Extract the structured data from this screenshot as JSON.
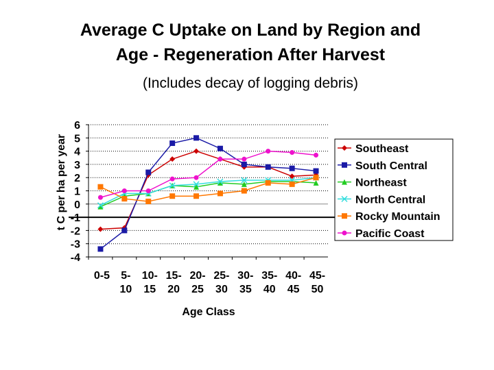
{
  "chart_data": {
    "type": "line",
    "title": "Average C Uptake on Land by Region and",
    "title_line2": "Age - Regeneration After Harvest",
    "subtitle": "(Includes decay of logging debris)",
    "xlabel": "Age Class",
    "ylabel": "t C per ha per year",
    "categories": [
      [
        "0-5",
        ""
      ],
      [
        "5-",
        "10"
      ],
      [
        "10-",
        "15"
      ],
      [
        "15-",
        "20"
      ],
      [
        "20-",
        "25"
      ],
      [
        "25-",
        "30"
      ],
      [
        "30-",
        "35"
      ],
      [
        "35-",
        "40"
      ],
      [
        "40-",
        "45"
      ],
      [
        "45-",
        "50"
      ]
    ],
    "ylim": [
      -4,
      6
    ],
    "yticks": [
      "6",
      "5",
      "4",
      "3",
      "2",
      "1",
      "0",
      "-1",
      "-2",
      "-3",
      "-4"
    ],
    "grid": true,
    "legend_position": "right",
    "series": [
      {
        "name": "Southeast",
        "color": "#cc0000",
        "marker": "diamond",
        "values": [
          -1.9,
          -1.8,
          2.2,
          3.4,
          4.0,
          3.4,
          2.8,
          2.8,
          2.1,
          2.2
        ]
      },
      {
        "name": "South Central",
        "color": "#1a1aa6",
        "marker": "square",
        "values": [
          -3.4,
          -2.0,
          2.4,
          4.6,
          5.0,
          4.2,
          3.0,
          2.8,
          2.7,
          2.5
        ]
      },
      {
        "name": "Northeast",
        "color": "#22cc22",
        "marker": "triangle",
        "values": [
          -0.2,
          0.6,
          0.8,
          1.4,
          1.3,
          1.6,
          1.5,
          1.7,
          1.7,
          1.6
        ]
      },
      {
        "name": "North Central",
        "color": "#33dddd",
        "marker": "x",
        "values": [
          -0.1,
          0.8,
          0.8,
          1.4,
          1.5,
          1.7,
          1.8,
          1.8,
          1.8,
          2.0
        ]
      },
      {
        "name": "Rocky Mountain",
        "color": "#ff7700",
        "marker": "square",
        "values": [
          1.3,
          0.4,
          0.2,
          0.6,
          0.6,
          0.8,
          1.0,
          1.6,
          1.5,
          2.0
        ]
      },
      {
        "name": "Pacific Coast",
        "color": "#ee11cc",
        "marker": "circle",
        "values": [
          0.5,
          1.0,
          1.0,
          1.9,
          2.0,
          3.4,
          3.4,
          4.0,
          3.9,
          3.7
        ]
      }
    ]
  }
}
